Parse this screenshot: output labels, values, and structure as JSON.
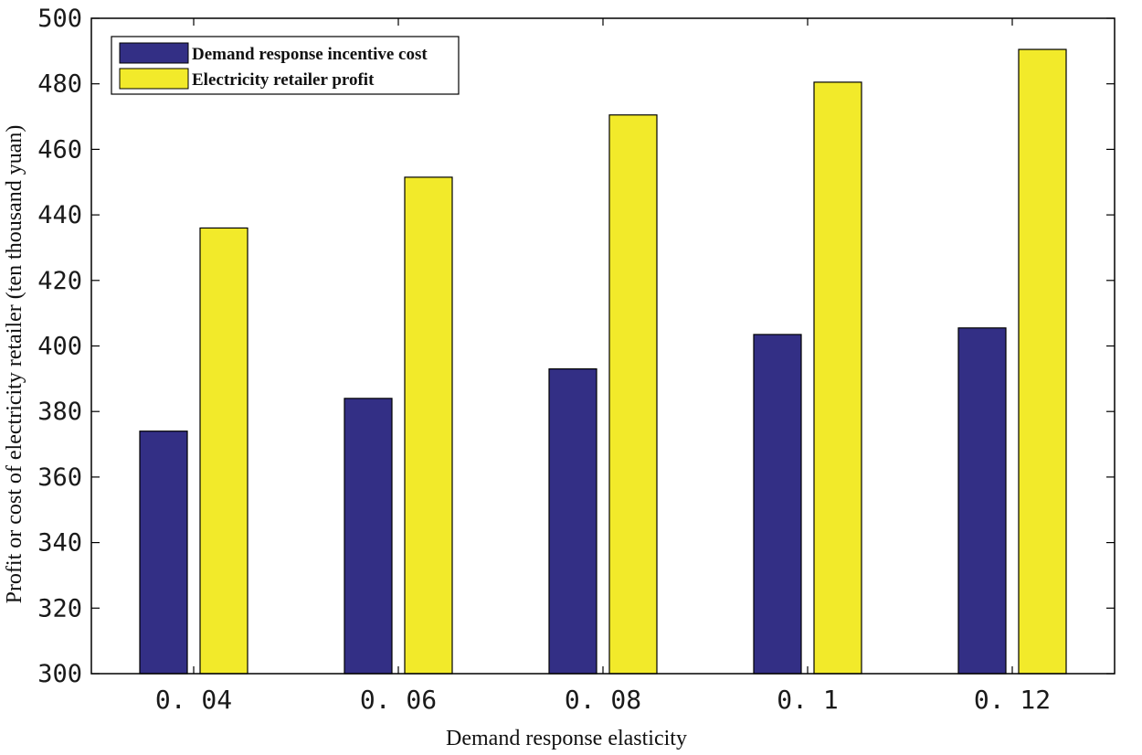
{
  "chart_data": {
    "type": "bar",
    "title": "",
    "xlabel": "Demand response elasticity",
    "ylabel": "Profit or cost of electricity retailer (ten thousand yuan)",
    "categories": [
      "0. 04",
      "0. 06",
      "0. 08",
      "0. 1",
      "0. 12"
    ],
    "ylim": [
      300,
      500
    ],
    "yticks": [
      300,
      320,
      340,
      360,
      380,
      400,
      420,
      440,
      460,
      480,
      500
    ],
    "grid": false,
    "legend_position": "top-left",
    "series": [
      {
        "name": "Demand response incentive cost",
        "color": "#332f85",
        "values": [
          374,
          384,
          393,
          403.5,
          405.5
        ]
      },
      {
        "name": "Electricity retailer profit",
        "color": "#f2ea2a",
        "values": [
          436,
          451.5,
          470.5,
          480.5,
          490.5
        ]
      }
    ]
  }
}
